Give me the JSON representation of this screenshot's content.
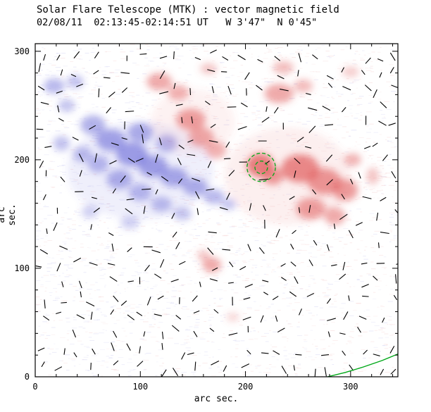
{
  "chart_data": {
    "type": "heatmap",
    "title": "Solar Flare Telescope (MTK) : vector magnetic field",
    "subtitle": "02/08/11  02:13:45-02:14:51 UT   W 3'47\"  N 0'45\"",
    "xlabel": "arc sec.",
    "ylabel": "arc sec.",
    "xlim": [
      0,
      345
    ],
    "ylim": [
      0,
      307
    ],
    "xticks": [
      0,
      100,
      200,
      300
    ],
    "yticks": [
      0,
      100,
      200,
      300
    ],
    "minor_tick_step": 20,
    "legend": "none",
    "grid": false,
    "colors": {
      "positive": "#e05858",
      "negative": "#6666d6",
      "noise_red": "#f2c0c0",
      "noise_blue": "#c0c0ee",
      "contour": "#00a818",
      "vector": "#000000",
      "axes": "#000000"
    },
    "blob_format": "x_arcsec,y_arcsec,rx_arcsec,ry_arcsec,opacity",
    "regions": {
      "negative_polarity_blue": [
        [
          18,
          268,
          10,
          7,
          0.45
        ],
        [
          38,
          272,
          8,
          6,
          0.4
        ],
        [
          30,
          250,
          8,
          6,
          0.38
        ],
        [
          55,
          232,
          12,
          9,
          0.5
        ],
        [
          72,
          218,
          14,
          10,
          0.58
        ],
        [
          92,
          205,
          15,
          11,
          0.62
        ],
        [
          112,
          194,
          14,
          10,
          0.6
        ],
        [
          132,
          184,
          13,
          9,
          0.55
        ],
        [
          152,
          175,
          12,
          8,
          0.5
        ],
        [
          170,
          166,
          10,
          7,
          0.45
        ],
        [
          184,
          159,
          7,
          5,
          0.4
        ],
        [
          60,
          196,
          10,
          8,
          0.45
        ],
        [
          80,
          182,
          12,
          9,
          0.5
        ],
        [
          100,
          170,
          11,
          8,
          0.45
        ],
        [
          120,
          159,
          10,
          7,
          0.42
        ],
        [
          140,
          150,
          9,
          6,
          0.38
        ],
        [
          52,
          152,
          8,
          6,
          0.3
        ],
        [
          90,
          142,
          9,
          6,
          0.3
        ],
        [
          25,
          215,
          8,
          7,
          0.4
        ],
        [
          45,
          205,
          9,
          7,
          0.42
        ],
        [
          100,
          225,
          12,
          9,
          0.5
        ],
        [
          125,
          215,
          10,
          8,
          0.45
        ],
        [
          100,
          190,
          70,
          45,
          0.1
        ]
      ],
      "positive_polarity_red": [
        [
          118,
          272,
          12,
          8,
          0.5
        ],
        [
          136,
          262,
          10,
          7,
          0.45
        ],
        [
          165,
          284,
          8,
          5,
          0.35
        ],
        [
          148,
          237,
          14,
          10,
          0.55
        ],
        [
          158,
          221,
          12,
          9,
          0.5
        ],
        [
          172,
          209,
          10,
          8,
          0.45
        ],
        [
          232,
          261,
          14,
          9,
          0.5
        ],
        [
          255,
          268,
          9,
          6,
          0.4
        ],
        [
          236,
          285,
          10,
          6,
          0.38
        ],
        [
          300,
          281,
          8,
          5,
          0.3
        ],
        [
          214,
          195,
          13,
          11,
          0.75
        ],
        [
          226,
          185,
          10,
          8,
          0.6
        ],
        [
          252,
          192,
          18,
          13,
          0.68
        ],
        [
          275,
          180,
          16,
          12,
          0.62
        ],
        [
          295,
          172,
          12,
          10,
          0.58
        ],
        [
          262,
          155,
          14,
          10,
          0.55
        ],
        [
          285,
          148,
          10,
          8,
          0.5
        ],
        [
          302,
          200,
          8,
          6,
          0.45
        ],
        [
          321,
          185,
          6,
          8,
          0.35
        ],
        [
          168,
          103,
          9,
          7,
          0.5
        ],
        [
          160,
          112,
          6,
          5,
          0.35
        ],
        [
          188,
          55,
          6,
          4,
          0.25
        ],
        [
          240,
          185,
          60,
          45,
          0.1
        ],
        [
          150,
          235,
          40,
          30,
          0.08
        ]
      ]
    },
    "contours": {
      "center_x": 215,
      "center_y": 193,
      "radii": [
        13.5,
        6
      ],
      "style": "dashed"
    },
    "limb_line": [
      [
        278,
        0
      ],
      [
        295,
        4
      ],
      [
        312,
        9
      ],
      [
        330,
        15
      ],
      [
        345,
        21
      ]
    ],
    "vector_field": {
      "description": "short black transverse-field segments on a jittered grid",
      "grid_step": 16,
      "margin": 8,
      "jitter": 5,
      "min_len": 5,
      "max_len": 9,
      "skip_prob": 0.25,
      "seed": 42
    },
    "noise": {
      "description": "pale red/blue scan speckle over plot area",
      "count": 2600,
      "seed": 7
    }
  }
}
